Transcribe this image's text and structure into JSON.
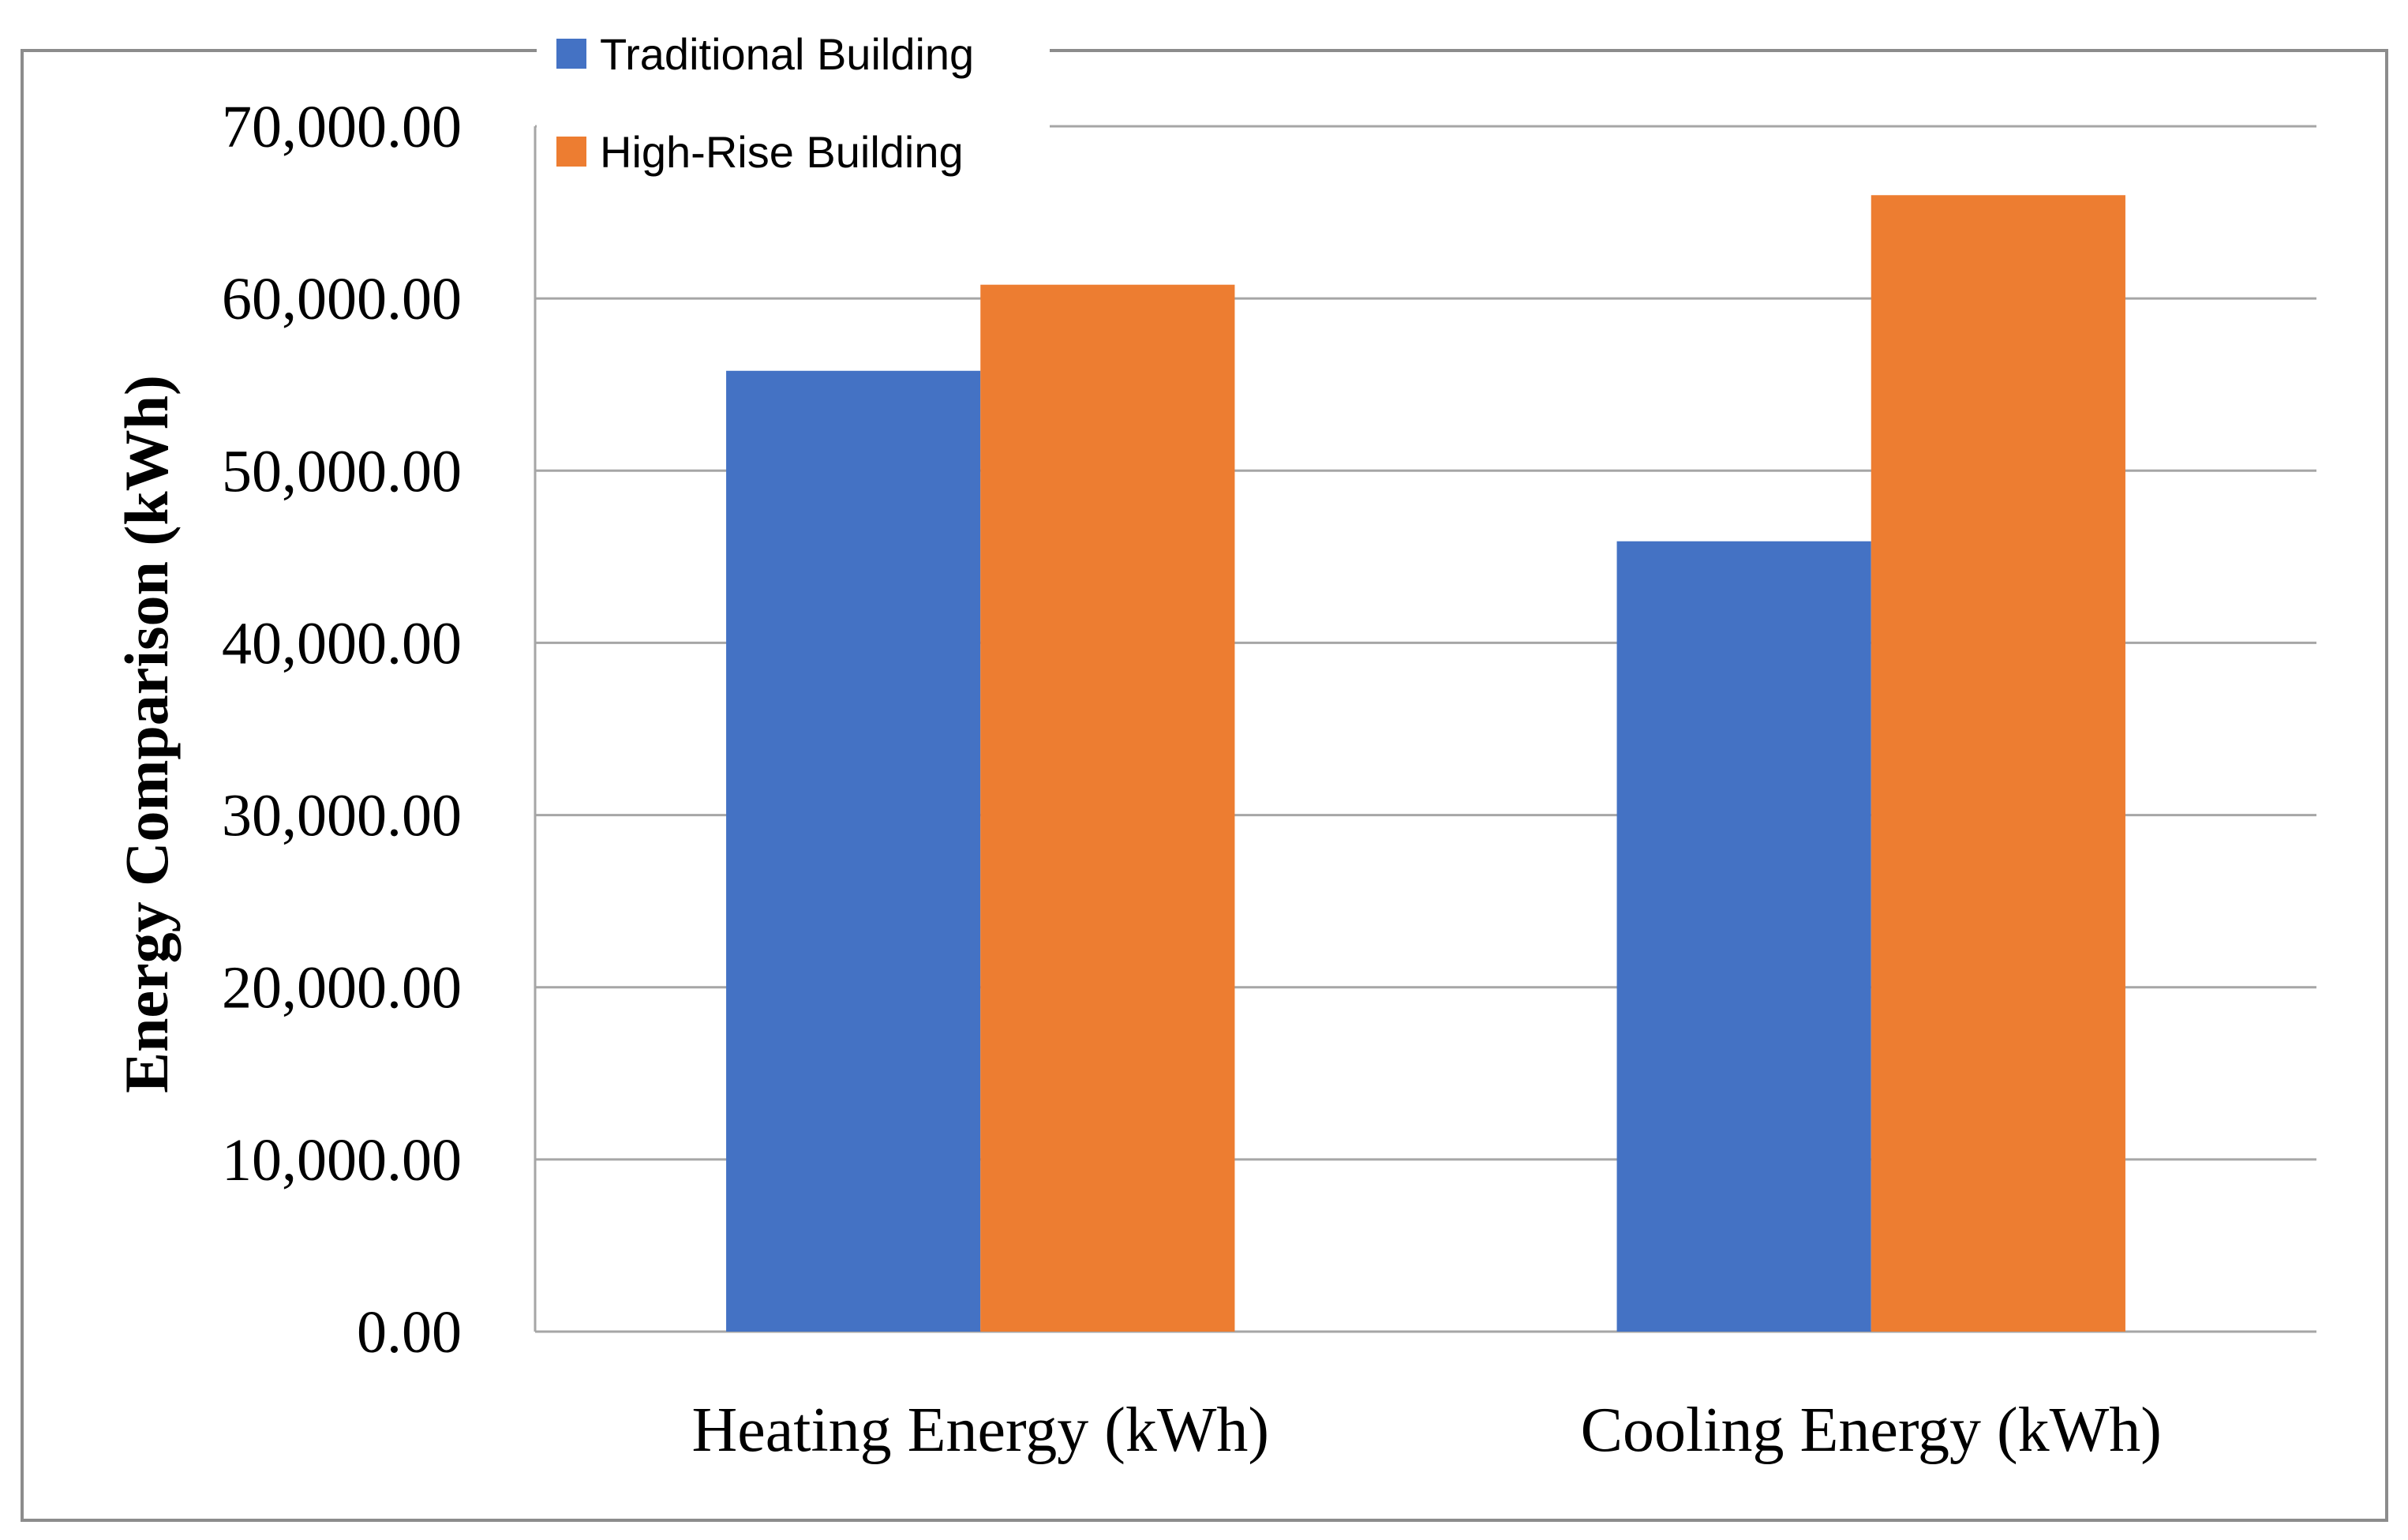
{
  "chart_data": {
    "type": "bar",
    "title": "",
    "xlabel": "",
    "ylabel": "Energy Comparison (kWh)",
    "categories": [
      "Heating Energy (kWh)",
      "Cooling Energy (kWh)"
    ],
    "series": [
      {
        "name": "Traditional Building",
        "color": "#4472C4",
        "values": [
          55800,
          45900
        ]
      },
      {
        "name": "High-Rise Building",
        "color": "#ED7D31",
        "values": [
          60800,
          66000
        ]
      }
    ],
    "ylim": [
      0,
      70000
    ],
    "yticks": [
      0,
      10000,
      20000,
      30000,
      40000,
      50000,
      60000,
      70000
    ],
    "ytick_labels": [
      "0.00",
      "10,000.00",
      "20,000.00",
      "30,000.00",
      "40,000.00",
      "50,000.00",
      "60,000.00",
      "70,000.00"
    ],
    "grid": true,
    "legend_position": "top-left"
  }
}
